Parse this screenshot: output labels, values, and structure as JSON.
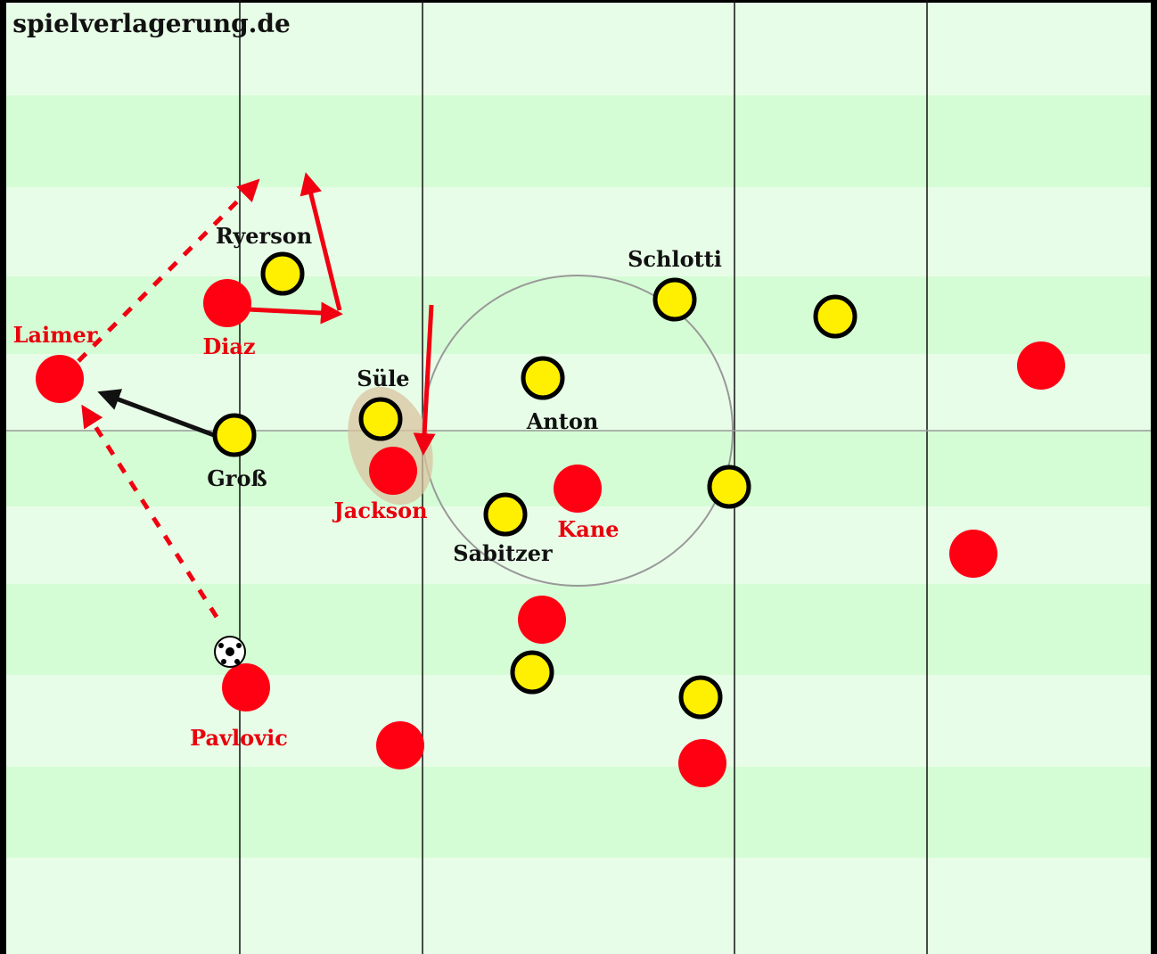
{
  "watermark": "spielverlagerung.de",
  "players": {
    "laimer": "Laimer",
    "diaz": "Diaz",
    "jackson": "Jackson",
    "kane": "Kane",
    "pavlovic": "Pavlovic",
    "ryerson": "Ryerson",
    "schlotti": "Schlotti",
    "sule": "Süle",
    "anton": "Anton",
    "gross": "Groß",
    "sabitzer": "Sabitzer"
  }
}
